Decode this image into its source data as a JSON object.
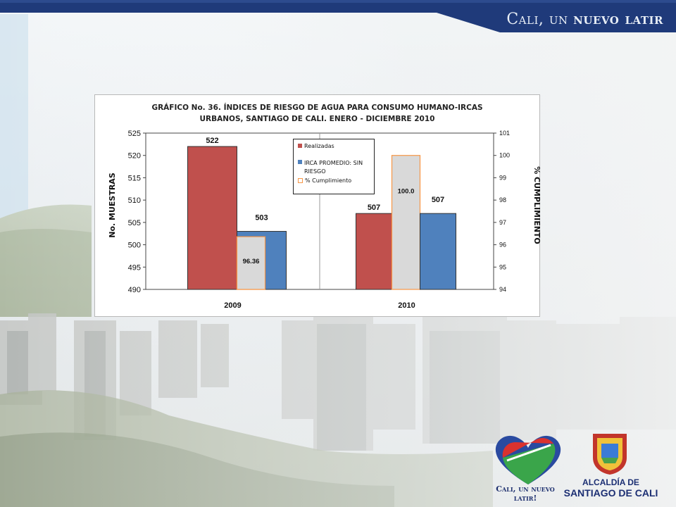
{
  "banner": {
    "slogan_prefix": "Cali, un",
    "slogan_bold": "nuevo latir"
  },
  "chart_data": {
    "type": "bar",
    "title_line1": "GRÁFICO No. 36.  ÍNDICES DE RIESGO DE AGUA PARA CONSUMO HUMANO-IRCAS",
    "title_line2": "URBANOS, SANTIAGO DE CALI.  ENERO - DICIEMBRE 2010",
    "categories": [
      "2009",
      "2010"
    ],
    "ylabel": "No. MUESTRAS",
    "y2label": "% CUMPLIMIENTO",
    "ylim": [
      490,
      525
    ],
    "yticks": [
      "525",
      "520",
      "515",
      "510",
      "505",
      "500",
      "495",
      "490"
    ],
    "y2lim": [
      94,
      101
    ],
    "y2ticks": [
      "101",
      "100",
      "99",
      "98",
      "97",
      "96",
      "95",
      "94"
    ],
    "series": [
      {
        "name": "Realizadas",
        "axis": "left",
        "color": "#c0504d",
        "values": [
          522,
          507
        ],
        "labels": [
          "522",
          "507"
        ]
      },
      {
        "name": "% Cumplimiento",
        "axis": "right",
        "color": "#d9d9d9",
        "border": "#f79646",
        "values": [
          96.36,
          100.0
        ],
        "labels": [
          "96.36",
          "100.0"
        ]
      },
      {
        "name": "IRCA PROMEDIO: SIN RIESGO",
        "axis": "left",
        "color": "#4f81bd",
        "values": [
          503,
          507
        ],
        "labels": [
          "503",
          "507"
        ]
      }
    ],
    "legend_position": "top-center",
    "grid": false
  },
  "logos": {
    "heart_text": "Cali, un nuevo latir!",
    "crest_line1": "ALCALDÍA DE",
    "crest_line2": "SANTIAGO DE CALI"
  },
  "icons": [
    "heart-logo-icon",
    "city-crest-icon"
  ]
}
